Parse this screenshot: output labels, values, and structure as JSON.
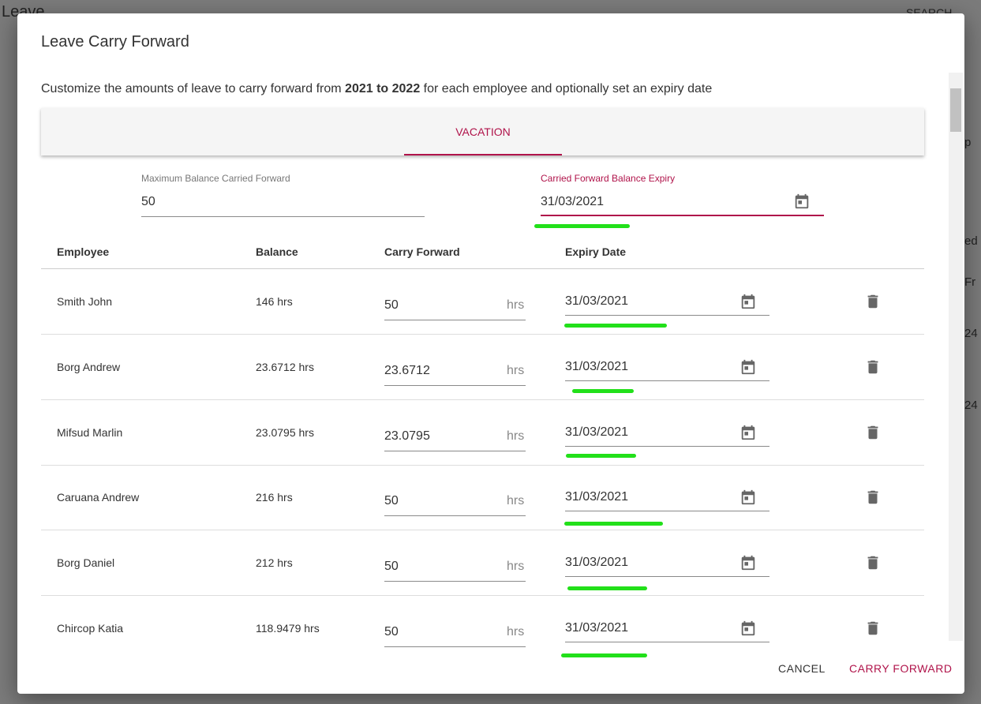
{
  "background": {
    "title": "Leave",
    "search": "SEARCH",
    "fragments": [
      "p",
      "ed l",
      "Fr",
      "24",
      "24"
    ]
  },
  "dialog": {
    "title": "Leave Carry Forward",
    "description": {
      "before": "Customize the amounts of leave to carry forward from ",
      "bold": "2021 to 2022",
      "after": " for each employee and optionally set an expiry date"
    },
    "tab": "VACATION",
    "max_balance": {
      "label": "Maximum Balance Carried Forward",
      "value": "50"
    },
    "expiry": {
      "label": "Carried Forward Balance Expiry",
      "value": "31/03/2021"
    },
    "table": {
      "headers": [
        "Employee",
        "Balance",
        "Carry Forward",
        "Expiry Date"
      ],
      "unit": "hrs",
      "rows": [
        [
          "Smith John",
          "146 hrs",
          "50",
          "31/03/2021"
        ],
        [
          "Borg Andrew",
          "23.6712 hrs",
          "23.6712",
          "31/03/2021"
        ],
        [
          "Mifsud Marlin",
          "23.0795 hrs",
          "23.0795",
          "31/03/2021"
        ],
        [
          "Caruana Andrew",
          "216 hrs",
          "50",
          "31/03/2021"
        ],
        [
          "Borg Daniel",
          "212 hrs",
          "50",
          "31/03/2021"
        ],
        [
          "Chircop Katia",
          "118.9479 hrs",
          "50",
          "31/03/2021"
        ]
      ]
    },
    "buttons": {
      "cancel": "CANCEL",
      "confirm": "CARRY FORWARD"
    }
  }
}
